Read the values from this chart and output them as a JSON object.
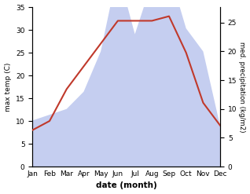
{
  "months": [
    "Jan",
    "Feb",
    "Mar",
    "Apr",
    "May",
    "Jun",
    "Jul",
    "Aug",
    "Sep",
    "Oct",
    "Nov",
    "Dec"
  ],
  "temp": [
    8,
    10,
    17,
    22,
    27,
    32,
    32,
    32,
    33,
    25,
    14,
    9
  ],
  "precip": [
    8,
    9,
    10,
    13,
    20,
    34,
    23,
    32,
    34,
    24,
    20,
    7
  ],
  "temp_color": "#c0392b",
  "precip_fill_color": "#c5cef0",
  "temp_ylim": [
    0,
    35
  ],
  "precip_ylim": [
    0,
    27.7
  ],
  "temp_yticks": [
    0,
    5,
    10,
    15,
    20,
    25,
    30,
    35
  ],
  "precip_yticks": [
    0,
    5,
    10,
    15,
    20,
    25
  ],
  "ylabel_left": "max temp (C)",
  "ylabel_right": "med. precipitation (kg/m2)",
  "xlabel": "date (month)",
  "bg_color": "#ffffff"
}
